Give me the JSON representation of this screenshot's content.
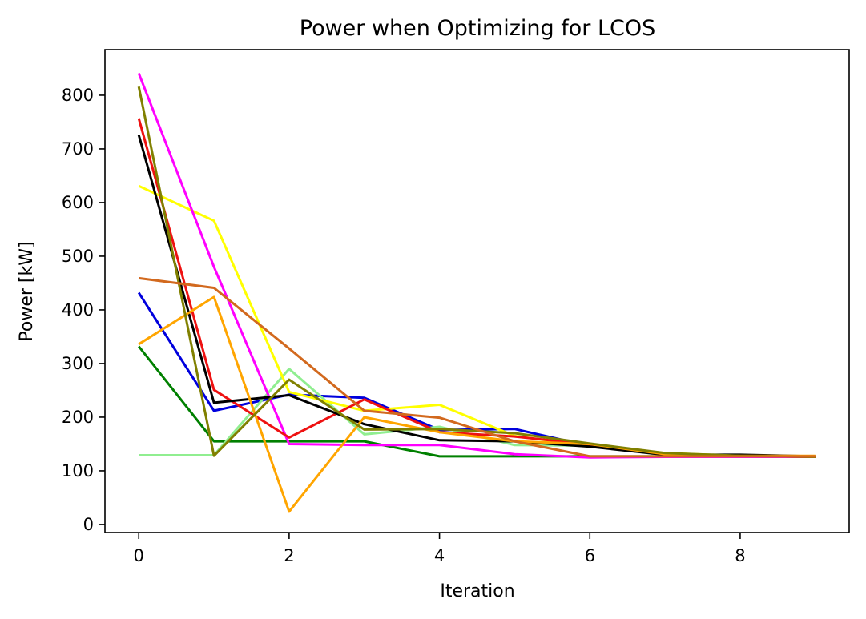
{
  "chart_data": {
    "type": "line",
    "title": "Power when Optimizing for LCOS",
    "xlabel": "Iteration",
    "ylabel": "Power [kW]",
    "xlim": [
      -0.45,
      9.45
    ],
    "ylim": [
      -15,
      885
    ],
    "xticks": [
      0,
      2,
      4,
      6,
      8
    ],
    "yticks": [
      0,
      100,
      200,
      300,
      400,
      500,
      600,
      700,
      800
    ],
    "grid": false,
    "legend": "none",
    "x": [
      0,
      1,
      2,
      3,
      4,
      5,
      6,
      7,
      8,
      9
    ],
    "series": [
      {
        "color": "#0000dd",
        "values": [
          432,
          212,
          242,
          236,
          176,
          178,
          146,
          131,
          128,
          126
        ]
      },
      {
        "color": "#008000",
        "values": [
          332,
          155,
          155,
          155,
          127,
          127,
          127,
          127,
          126,
          126
        ]
      },
      {
        "color": "#90ee90",
        "values": [
          129,
          129,
          290,
          168,
          182,
          148,
          147,
          129,
          128,
          126
        ]
      },
      {
        "color": "#ffff00",
        "values": [
          631,
          566,
          247,
          212,
          223,
          165,
          146,
          133,
          128,
          126
        ]
      },
      {
        "color": "#ff00ff",
        "values": [
          841,
          480,
          150,
          148,
          148,
          131,
          125,
          126,
          126,
          126
        ]
      },
      {
        "color": "#ee1111",
        "values": [
          757,
          251,
          162,
          233,
          172,
          164,
          149,
          132,
          128,
          126
        ]
      },
      {
        "color": "#000000",
        "values": [
          726,
          227,
          241,
          187,
          157,
          155,
          145,
          130,
          130,
          127
        ]
      },
      {
        "color": "#ffa500",
        "values": [
          336,
          424,
          24,
          200,
          172,
          155,
          150,
          131,
          128,
          128
        ]
      },
      {
        "color": "#808000",
        "values": [
          816,
          128,
          270,
          177,
          178,
          170,
          151,
          133,
          128,
          126
        ]
      },
      {
        "color": "#d2691e",
        "values": [
          459,
          441,
          328,
          212,
          199,
          155,
          127,
          127,
          127,
          127
        ]
      }
    ]
  }
}
